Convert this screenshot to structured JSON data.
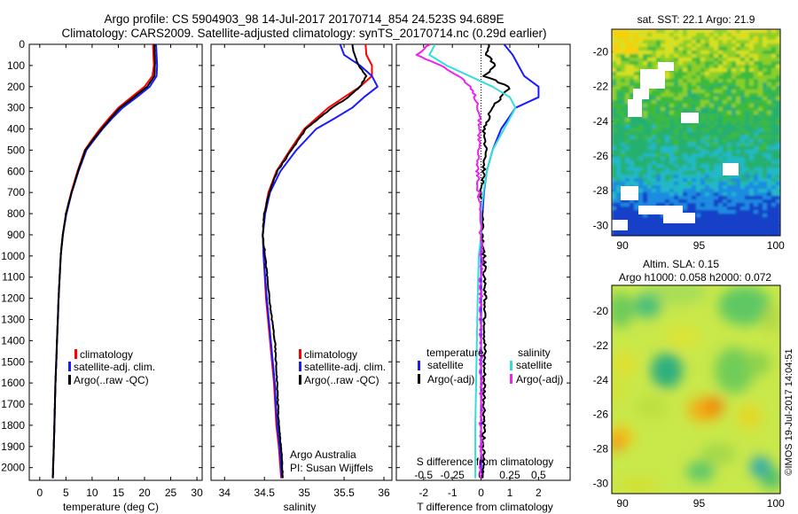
{
  "title_line1": "Argo profile: CS 5904903_98 14-Jul-2017 20170714_854 24.523S 94.689E",
  "title_line2": "Climatology: CARS2009. Satellite-adjusted climatology: synTS_20170714.nc (0.29d earlier)",
  "depth_ticks": [
    0,
    100,
    200,
    300,
    400,
    500,
    600,
    700,
    800,
    900,
    1000,
    1100,
    1200,
    1300,
    1400,
    1500,
    1600,
    1700,
    1800,
    1900,
    2000
  ],
  "temperature_panel": {
    "xlabel": "temperature (deg C)",
    "xticks": [
      0,
      5,
      10,
      15,
      20,
      25,
      30
    ],
    "xlim": [
      -2,
      31
    ],
    "ylim": [
      0,
      2060
    ],
    "legend": [
      "climatology",
      "satellite-adj. clim.",
      "Argo(..raw -QC)"
    ]
  },
  "salinity_panel": {
    "xlabel": "salinity",
    "xticks": [
      34,
      34.5,
      35,
      35.5,
      36
    ],
    "xtick_labels": [
      "34",
      "34.5",
      "35",
      "35.5",
      "36"
    ],
    "xlim": [
      33.83,
      36.1
    ],
    "ylim": [
      0,
      2060
    ],
    "legend": [
      "climatology",
      "satellite-adj. clim.",
      "Argo(..raw -QC)"
    ],
    "note_line1": "Argo Australia",
    "note_line2": "PI: Susan Wijffels"
  },
  "difference_panel": {
    "xlabel_bottom": "T difference from climatology",
    "xlabel_top": "S difference from climatology",
    "t_ticks": [
      -2,
      -1,
      0,
      1,
      2
    ],
    "t_tick_labels": [
      "-2",
      "-1",
      "0",
      "1",
      "2"
    ],
    "s_tick_labels": [
      "-0.5",
      "-0.25",
      "0",
      "0.25",
      "0.5"
    ],
    "t_xlim": [
      -2.95,
      3.1
    ],
    "ylim": [
      0,
      2060
    ],
    "legend_temperature_header": "temperature",
    "legend_salinity_header": "salinity",
    "legend_satellite": "satellite",
    "legend_argo": "Argo(-adj)"
  },
  "sst_map": {
    "title": "sat. SST: 22.1  Argo: 21.9",
    "xticks": [
      90,
      95,
      100
    ],
    "xtick_labels": [
      "90",
      "95",
      "100"
    ],
    "yticks": [
      -20,
      -22,
      -24,
      -26,
      -28,
      -30
    ],
    "yticks_labels": [
      "-20",
      "-22",
      "-24",
      "-26",
      "-28",
      "-30"
    ],
    "xlim": [
      89.3,
      100.3
    ],
    "ylim": [
      -30.6,
      -18.7
    ]
  },
  "sla_map": {
    "title_line1": "Altim. SLA: 0.15",
    "title_line2": "Argo h1000: 0.058 h2000: 0.072",
    "xticks": [
      90,
      95,
      100
    ],
    "xtick_labels": [
      "90",
      "95",
      "100"
    ],
    "yticks": [
      -20,
      -22,
      -24,
      -26,
      -28,
      -30
    ],
    "yticks_labels": [
      "-20",
      "-22",
      "-24",
      "-26",
      "-28",
      "-30"
    ],
    "xlim": [
      89.3,
      100.3
    ],
    "ylim": [
      -30.6,
      -18.5
    ]
  },
  "footer": "©IMOS 19-Jul-2017 14:04:51",
  "colors": {
    "climatology": "#ff0000",
    "satellite": "#1a1aff",
    "argo": "#000000",
    "satellite_temperature": "#1a1aff",
    "satellite_salinity": "#33dddd",
    "argo_salinity": "#ee22ee"
  },
  "chart_data": [
    {
      "type": "line",
      "xlabel": "temperature (deg C)",
      "ylabel": "",
      "xlim": [
        -2,
        31
      ],
      "ylim": [
        2060,
        0
      ],
      "series": [
        {
          "name": "climatology",
          "x": [
            21.6,
            21.8,
            21.5,
            20.0,
            17.5,
            15.0,
            13.2,
            11.5,
            10.0,
            8.6,
            7.2,
            6.0,
            5.0,
            4.4,
            4.0,
            3.6,
            3.3,
            3.0,
            2.8,
            2.5
          ],
          "y": [
            0,
            100,
            150,
            200,
            250,
            300,
            350,
            400,
            450,
            500,
            600,
            700,
            800,
            900,
            1000,
            1200,
            1400,
            1600,
            1800,
            2050
          ]
        },
        {
          "name": "satellite-adj. clim.",
          "x": [
            22.2,
            22.4,
            22.3,
            21.0,
            18.5,
            15.8,
            13.8,
            12.0,
            10.4,
            8.9,
            7.4,
            6.1,
            5.1,
            4.4,
            4.0,
            3.6,
            3.3,
            3.0,
            2.8,
            2.5
          ],
          "y": [
            0,
            100,
            150,
            200,
            250,
            300,
            350,
            400,
            450,
            500,
            600,
            700,
            800,
            900,
            1000,
            1200,
            1400,
            1600,
            1800,
            2050
          ]
        },
        {
          "name": "Argo(..raw -QC)",
          "x": [
            21.9,
            22.0,
            21.9,
            20.5,
            18.0,
            15.3,
            13.5,
            11.8,
            10.2,
            8.7,
            7.3,
            6.1,
            5.0,
            4.4,
            4.0,
            3.6,
            3.3,
            3.0,
            2.8,
            2.5
          ],
          "y": [
            0,
            100,
            150,
            200,
            250,
            300,
            350,
            400,
            450,
            500,
            600,
            700,
            800,
            900,
            1000,
            1200,
            1400,
            1600,
            1800,
            2050
          ]
        }
      ]
    },
    {
      "type": "line",
      "xlabel": "salinity",
      "ylabel": "",
      "xlim": [
        33.83,
        36.1
      ],
      "ylim": [
        2060,
        0
      ],
      "series": [
        {
          "name": "climatology",
          "x": [
            35.77,
            35.78,
            35.85,
            35.85,
            35.7,
            35.5,
            35.3,
            35.15,
            35.0,
            34.82,
            34.65,
            34.55,
            34.5,
            34.48,
            34.49,
            34.52,
            34.57,
            34.62,
            34.65,
            34.68,
            34.71
          ],
          "y": [
            0,
            50,
            100,
            150,
            200,
            250,
            300,
            350,
            400,
            500,
            600,
            700,
            800,
            900,
            1000,
            1200,
            1400,
            1600,
            1800,
            1900,
            2050
          ]
        },
        {
          "name": "satellite-adj. clim.",
          "x": [
            35.45,
            35.5,
            35.7,
            35.85,
            35.92,
            35.75,
            35.6,
            35.38,
            35.15,
            34.9,
            34.7,
            34.57,
            34.51,
            34.48,
            34.49,
            34.53,
            34.58,
            34.63,
            34.66,
            34.69,
            34.72
          ],
          "y": [
            0,
            50,
            100,
            150,
            200,
            250,
            300,
            350,
            400,
            500,
            600,
            700,
            800,
            900,
            1000,
            1200,
            1400,
            1600,
            1800,
            1900,
            2050
          ]
        },
        {
          "name": "Argo(..raw -QC)",
          "x": [
            35.6,
            35.63,
            35.68,
            35.78,
            35.7,
            35.55,
            35.35,
            35.18,
            35.02,
            34.84,
            34.66,
            34.56,
            34.5,
            34.48,
            34.51,
            34.56,
            34.63,
            34.66,
            34.68,
            34.71,
            34.73
          ],
          "y": [
            0,
            50,
            100,
            150,
            200,
            250,
            300,
            350,
            400,
            500,
            600,
            700,
            800,
            900,
            1000,
            1200,
            1400,
            1600,
            1800,
            1900,
            2050
          ]
        }
      ]
    },
    {
      "type": "line",
      "xlabel": "T difference from climatology",
      "xlabel_top": "S difference from climatology",
      "xlim": [
        -2.95,
        3.1
      ],
      "ylim": [
        2060,
        0
      ],
      "series": [
        {
          "name": "satellite",
          "group": "temperature",
          "x": [
            0.8,
            1.1,
            1.3,
            1.5,
            2.0,
            2.0,
            1.2,
            0.7,
            0.4,
            0.2,
            0.1,
            0.05,
            0.0,
            0.0,
            0.0,
            0.0,
            0.0,
            0.0
          ],
          "y": [
            0,
            50,
            100,
            150,
            200,
            250,
            300,
            400,
            500,
            600,
            700,
            800,
            900,
            1000,
            1200,
            1500,
            1800,
            2050
          ]
        },
        {
          "name": "Argo(-adj)",
          "group": "temperature",
          "x": [
            0.3,
            0.2,
            0.5,
            0.1,
            1.0,
            0.7,
            0.4,
            0.1,
            0.15,
            0.1,
            0.0,
            0.05,
            0.05,
            0.1,
            0.15,
            0.1,
            0.1,
            0.05
          ],
          "y": [
            0,
            50,
            100,
            150,
            200,
            250,
            300,
            400,
            500,
            600,
            700,
            800,
            900,
            1000,
            1200,
            1500,
            1800,
            2050
          ]
        },
        {
          "name": "satellite",
          "group": "salinity",
          "x": [
            -0.4,
            -0.45,
            -0.3,
            -0.1,
            0.1,
            0.25,
            0.3,
            0.2,
            0.1,
            0.05,
            0.02,
            0.0,
            0.0,
            -0.02,
            -0.03,
            -0.04,
            -0.05,
            -0.05
          ],
          "y": [
            0,
            50,
            100,
            150,
            200,
            250,
            300,
            400,
            500,
            600,
            700,
            800,
            900,
            1000,
            1200,
            1500,
            1800,
            2050
          ]
        },
        {
          "name": "Argo(-adj)",
          "group": "salinity",
          "x": [
            -0.45,
            -0.55,
            -0.35,
            -0.2,
            -0.1,
            -0.05,
            -0.02,
            -0.01,
            -0.02,
            -0.03,
            -0.02,
            -0.01,
            0.0,
            0.0,
            0.0,
            0.0,
            0.0,
            0.0
          ],
          "y": [
            0,
            50,
            100,
            150,
            200,
            250,
            300,
            400,
            500,
            600,
            700,
            800,
            900,
            1000,
            1200,
            1500,
            1800,
            2050
          ]
        }
      ]
    },
    {
      "type": "heatmap",
      "title": "sat. SST: 22.1  Argo: 21.9",
      "xlim": [
        89.3,
        100.3
      ],
      "ylim": [
        -30.6,
        -18.7
      ]
    },
    {
      "type": "heatmap",
      "title": "Altim. SLA: 0.15",
      "subtitle": "Argo h1000: 0.058 h2000: 0.072",
      "xlim": [
        89.3,
        100.3
      ],
      "ylim": [
        -30.6,
        -18.5
      ]
    }
  ]
}
